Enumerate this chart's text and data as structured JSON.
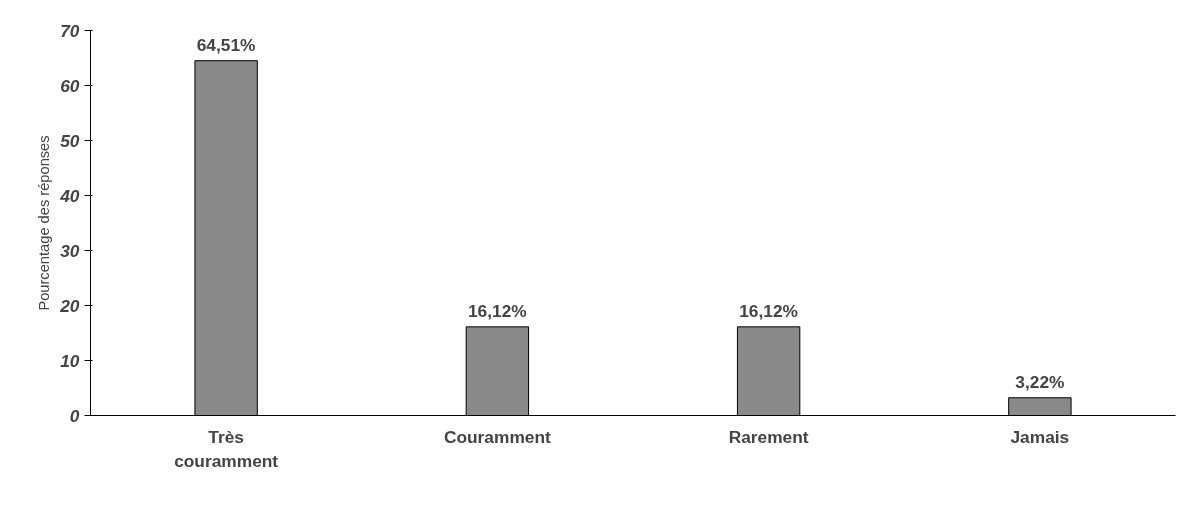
{
  "chart_data": {
    "type": "bar",
    "ylabel": "Pourcentage des réponses",
    "categories": [
      "Très couramment",
      "Couramment",
      "Rarement",
      "Jamais"
    ],
    "values": [
      64.51,
      16.12,
      16.12,
      3.22
    ],
    "value_labels": [
      "64,51%",
      "16,12%",
      "16,12%",
      "3,22%"
    ],
    "color": "#8a8a8a",
    "ylim": [
      0,
      70
    ],
    "yticks": [
      0,
      10,
      20,
      30,
      40,
      50,
      60,
      70
    ],
    "grid": false
  }
}
